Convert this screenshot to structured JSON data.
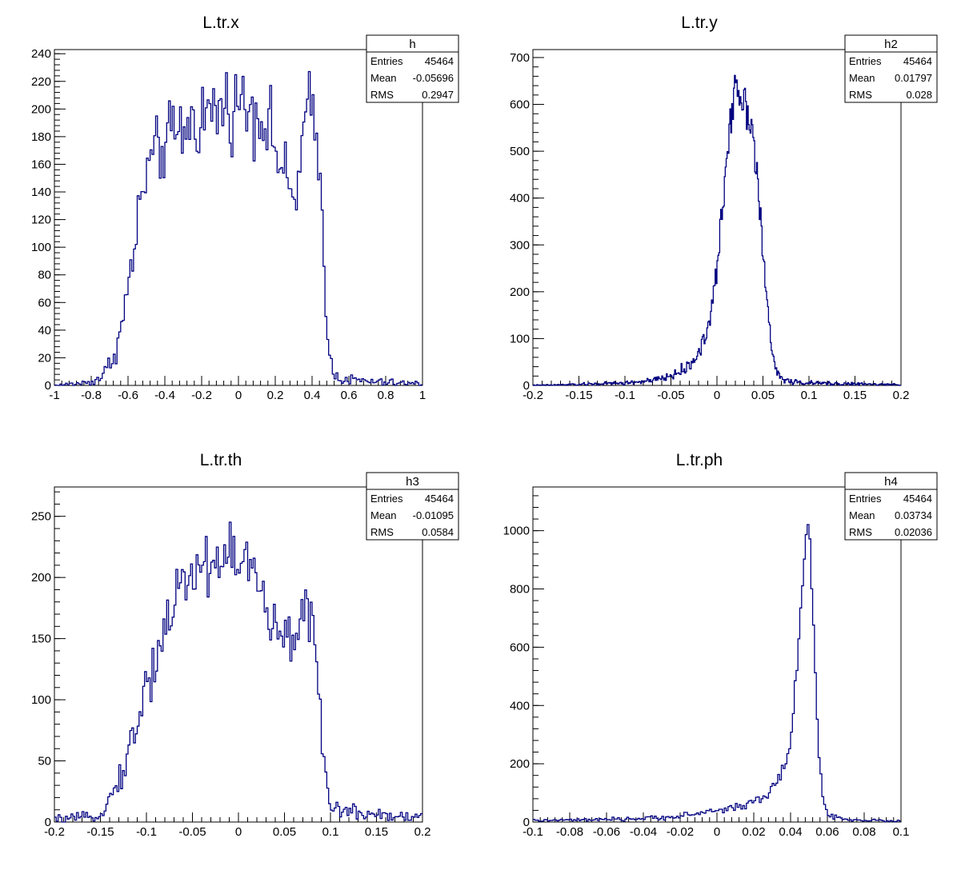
{
  "chart_data": [
    {
      "type": "histogram",
      "title": "L.tr.x",
      "xlim": [
        -1,
        1
      ],
      "ylim": [
        0,
        243
      ],
      "xticks": [
        -1,
        -0.8,
        -0.6,
        -0.4,
        -0.2,
        0,
        0.2,
        0.4,
        0.6,
        0.8,
        1
      ],
      "xtick_labels": [
        "-1",
        "-0.8",
        "-0.6",
        "-0.4",
        "-0.2",
        "0",
        "0.2",
        "0.4",
        "0.6",
        "0.8",
        "1"
      ],
      "yticks": [
        0,
        20,
        40,
        60,
        80,
        100,
        120,
        140,
        160,
        180,
        200,
        220,
        240
      ],
      "ytick_labels": [
        "0",
        "20",
        "40",
        "60",
        "80",
        "100",
        "120",
        "140",
        "160",
        "180",
        "200",
        "220",
        "240"
      ],
      "bins": 200,
      "color": "#000080",
      "stats": {
        "name": "h",
        "entries_label": "Entries",
        "entries": "45464",
        "mean_label": "Mean",
        "mean": "-0.05696",
        "rms_label": "RMS",
        "rms": "0.2947"
      },
      "shape": [
        [
          -1.0,
          0
        ],
        [
          -0.9,
          1
        ],
        [
          -0.82,
          2
        ],
        [
          -0.76,
          5
        ],
        [
          -0.72,
          10
        ],
        [
          -0.68,
          22
        ],
        [
          -0.64,
          38
        ],
        [
          -0.6,
          70
        ],
        [
          -0.56,
          105
        ],
        [
          -0.53,
          132
        ],
        [
          -0.5,
          155
        ],
        [
          -0.45,
          165
        ],
        [
          -0.4,
          175
        ],
        [
          -0.35,
          180
        ],
        [
          -0.3,
          185
        ],
        [
          -0.2,
          195
        ],
        [
          -0.1,
          200
        ],
        [
          0.0,
          205
        ],
        [
          0.1,
          200
        ],
        [
          0.16,
          190
        ],
        [
          0.22,
          165
        ],
        [
          0.26,
          145
        ],
        [
          0.3,
          135
        ],
        [
          0.33,
          150
        ],
        [
          0.36,
          190
        ],
        [
          0.39,
          200
        ],
        [
          0.42,
          180
        ],
        [
          0.45,
          140
        ],
        [
          0.47,
          80
        ],
        [
          0.49,
          25
        ],
        [
          0.51,
          10
        ],
        [
          0.55,
          6
        ],
        [
          0.6,
          4
        ],
        [
          0.7,
          3
        ],
        [
          0.8,
          2
        ],
        [
          1.0,
          1
        ]
      ]
    },
    {
      "type": "histogram",
      "title": "L.tr.y",
      "xlim": [
        -0.2,
        0.2
      ],
      "ylim": [
        0,
        717
      ],
      "xticks": [
        -0.2,
        -0.15,
        -0.1,
        -0.05,
        0,
        0.05,
        0.1,
        0.15,
        0.2
      ],
      "xtick_labels": [
        "-0.2",
        "-0.15",
        "-0.1",
        "-0.05",
        "0",
        "0.05",
        "0.1",
        "0.15",
        "0.2"
      ],
      "yticks": [
        0,
        100,
        200,
        300,
        400,
        500,
        600,
        700
      ],
      "ytick_labels": [
        "0",
        "100",
        "200",
        "300",
        "400",
        "500",
        "600",
        "700"
      ],
      "bins": 400,
      "color": "#000080",
      "stats": {
        "name": "h2",
        "entries_label": "Entries",
        "entries": "45464",
        "mean_label": "Mean",
        "mean": "0.01797",
        "rms_label": "RMS",
        "rms": "0.028"
      },
      "shape": [
        [
          -0.2,
          0
        ],
        [
          -0.15,
          2
        ],
        [
          -0.1,
          5
        ],
        [
          -0.07,
          10
        ],
        [
          -0.05,
          20
        ],
        [
          -0.03,
          40
        ],
        [
          -0.02,
          70
        ],
        [
          -0.01,
          120
        ],
        [
          -0.005,
          170
        ],
        [
          0.0,
          250
        ],
        [
          0.005,
          350
        ],
        [
          0.01,
          470
        ],
        [
          0.015,
          580
        ],
        [
          0.02,
          650
        ],
        [
          0.025,
          630
        ],
        [
          0.03,
          600
        ],
        [
          0.035,
          590
        ],
        [
          0.04,
          530
        ],
        [
          0.045,
          420
        ],
        [
          0.05,
          280
        ],
        [
          0.055,
          160
        ],
        [
          0.06,
          70
        ],
        [
          0.065,
          30
        ],
        [
          0.07,
          15
        ],
        [
          0.08,
          8
        ],
        [
          0.1,
          5
        ],
        [
          0.15,
          3
        ],
        [
          0.2,
          1
        ]
      ]
    },
    {
      "type": "histogram",
      "title": "L.tr.th",
      "xlim": [
        -0.2,
        0.2
      ],
      "ylim": [
        0,
        274
      ],
      "xticks": [
        -0.2,
        -0.15,
        -0.1,
        -0.05,
        0,
        0.05,
        0.1,
        0.15,
        0.2
      ],
      "xtick_labels": [
        "-0.2",
        "-0.15",
        "-0.1",
        "-0.05",
        "0",
        "0.05",
        "0.1",
        "0.15",
        "0.2"
      ],
      "yticks": [
        0,
        50,
        100,
        150,
        200,
        250
      ],
      "ytick_labels": [
        "0",
        "50",
        "100",
        "150",
        "200",
        "250"
      ],
      "bins": 200,
      "color": "#000080",
      "stats": {
        "name": "h3",
        "entries_label": "Entries",
        "entries": "45464",
        "mean_label": "Mean",
        "mean": "-0.01095",
        "rms_label": "RMS",
        "rms": "0.0584"
      },
      "shape": [
        [
          -0.2,
          2
        ],
        [
          -0.16,
          4
        ],
        [
          -0.15,
          8
        ],
        [
          -0.14,
          18
        ],
        [
          -0.13,
          35
        ],
        [
          -0.12,
          55
        ],
        [
          -0.11,
          80
        ],
        [
          -0.1,
          110
        ],
        [
          -0.09,
          135
        ],
        [
          -0.08,
          160
        ],
        [
          -0.07,
          180
        ],
        [
          -0.06,
          195
        ],
        [
          -0.05,
          205
        ],
        [
          -0.04,
          210
        ],
        [
          -0.03,
          210
        ],
        [
          -0.02,
          215
        ],
        [
          -0.01,
          220
        ],
        [
          0.0,
          218
        ],
        [
          0.01,
          210
        ],
        [
          0.02,
          195
        ],
        [
          0.03,
          175
        ],
        [
          0.04,
          155
        ],
        [
          0.05,
          145
        ],
        [
          0.06,
          150
        ],
        [
          0.07,
          180
        ],
        [
          0.075,
          185
        ],
        [
          0.08,
          165
        ],
        [
          0.085,
          120
        ],
        [
          0.09,
          70
        ],
        [
          0.095,
          30
        ],
        [
          0.1,
          15
        ],
        [
          0.11,
          10
        ],
        [
          0.13,
          8
        ],
        [
          0.16,
          6
        ],
        [
          0.2,
          4
        ]
      ]
    },
    {
      "type": "histogram",
      "title": "L.tr.ph",
      "xlim": [
        -0.1,
        0.1
      ],
      "ylim": [
        0,
        1150
      ],
      "xticks": [
        -0.1,
        -0.08,
        -0.06,
        -0.04,
        -0.02,
        0,
        0.02,
        0.04,
        0.06,
        0.08,
        0.1
      ],
      "xtick_labels": [
        "-0.1",
        "-0.08",
        "-0.06",
        "-0.04",
        "-0.02",
        "0",
        "0.02",
        "0.04",
        "0.06",
        "0.08",
        "0.1"
      ],
      "yticks": [
        0,
        200,
        400,
        600,
        800,
        1000
      ],
      "ytick_labels": [
        "0",
        "200",
        "400",
        "600",
        "800",
        "1000"
      ],
      "bins": 200,
      "color": "#000080",
      "stats": {
        "name": "h4",
        "entries_label": "Entries",
        "entries": "45464",
        "mean_label": "Mean",
        "mean": "0.03734",
        "rms_label": "RMS",
        "rms": "0.02036"
      },
      "shape": [
        [
          -0.1,
          5
        ],
        [
          -0.06,
          8
        ],
        [
          -0.04,
          12
        ],
        [
          -0.02,
          20
        ],
        [
          -0.01,
          30
        ],
        [
          0.0,
          40
        ],
        [
          0.01,
          50
        ],
        [
          0.02,
          70
        ],
        [
          0.025,
          85
        ],
        [
          0.03,
          110
        ],
        [
          0.035,
          160
        ],
        [
          0.038,
          220
        ],
        [
          0.04,
          300
        ],
        [
          0.042,
          420
        ],
        [
          0.044,
          580
        ],
        [
          0.046,
          760
        ],
        [
          0.048,
          950
        ],
        [
          0.049,
          1050
        ],
        [
          0.05,
          1000
        ],
        [
          0.052,
          720
        ],
        [
          0.054,
          420
        ],
        [
          0.056,
          180
        ],
        [
          0.058,
          70
        ],
        [
          0.06,
          30
        ],
        [
          0.065,
          15
        ],
        [
          0.07,
          10
        ],
        [
          0.08,
          6
        ],
        [
          0.1,
          3
        ]
      ]
    }
  ]
}
